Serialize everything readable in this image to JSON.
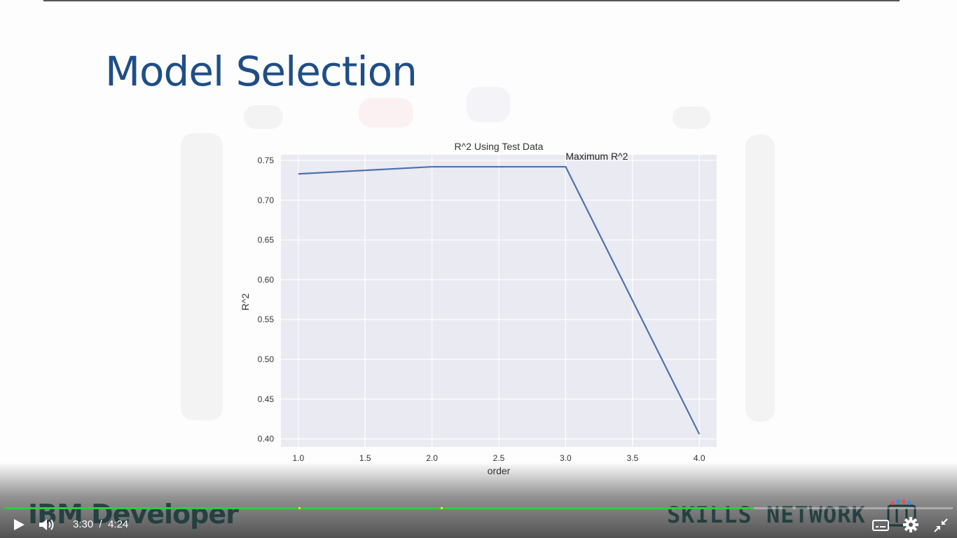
{
  "slide": {
    "title": "Model Selection"
  },
  "chart_data": {
    "type": "line",
    "title": "R^2 Using Test Data",
    "xlabel": "order",
    "ylabel": "R^2",
    "x": [
      1.0,
      2.0,
      3.0,
      4.0
    ],
    "series": [
      {
        "values": [
          0.733,
          0.742,
          0.742,
          0.406
        ],
        "color": "#4c72b0"
      }
    ],
    "xlim": [
      0.87,
      4.13
    ],
    "ylim": [
      0.39,
      0.757
    ],
    "xticks": [
      1.0,
      1.5,
      2.0,
      2.5,
      3.0,
      3.5,
      4.0
    ],
    "xtick_labels": [
      "1.0",
      "1.5",
      "2.0",
      "2.5",
      "3.0",
      "3.5",
      "4.0"
    ],
    "yticks": [
      0.4,
      0.45,
      0.5,
      0.55,
      0.6,
      0.65,
      0.7,
      0.75
    ],
    "ytick_labels": [
      "0.40",
      "0.45",
      "0.50",
      "0.55",
      "0.60",
      "0.65",
      "0.70",
      "0.75"
    ],
    "annotations": [
      {
        "text": "Maximum R^2",
        "x": 3.0,
        "y": 0.742
      }
    ],
    "grid": true,
    "background": "#eaeaf2"
  },
  "watermarks": {
    "left": "IBM Developer",
    "right": "SKILLS NETWORK"
  },
  "player": {
    "current_time": "3:30",
    "separator": "/",
    "duration": "4:24",
    "progress": 0.79,
    "accent_color": "#2ecc40",
    "chapter_marks": [
      0.31,
      0.46
    ],
    "icons": [
      "play-icon",
      "volume-icon",
      "captions-icon",
      "settings-icon",
      "exit-fullscreen-icon"
    ]
  }
}
